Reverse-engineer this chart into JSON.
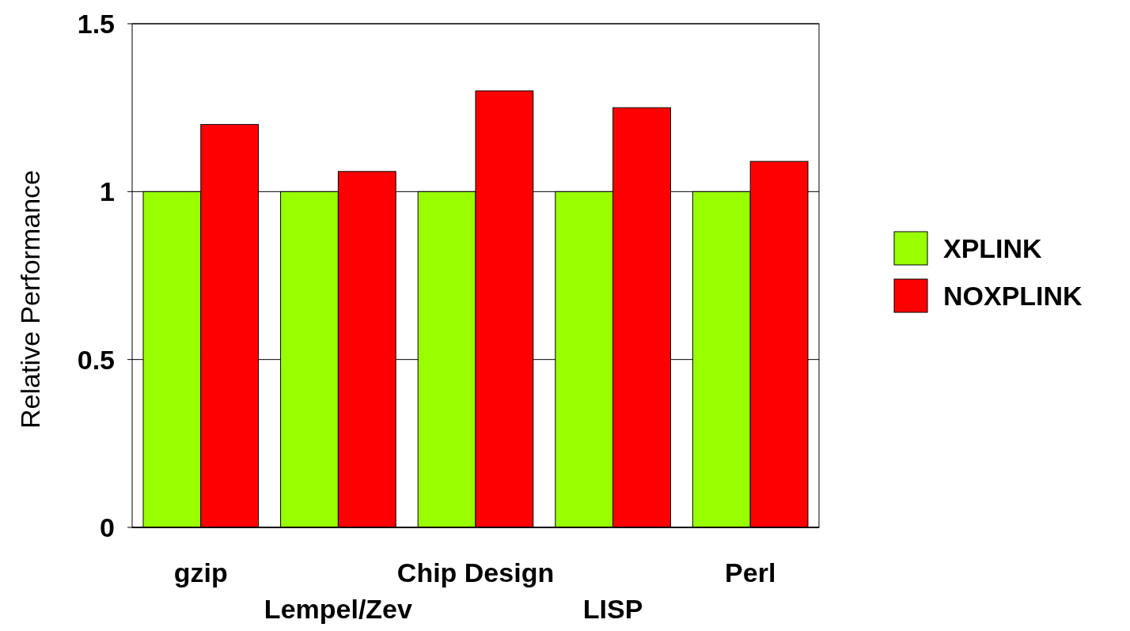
{
  "chart_data": {
    "type": "bar",
    "ylabel": "Relative Performance",
    "categories": [
      "gzip",
      "Lempel/Zev",
      "Chip Design",
      "LISP",
      "Perl"
    ],
    "series": [
      {
        "name": "XPLINK",
        "color": "#99ff00",
        "values": [
          1,
          1,
          1,
          1,
          1
        ]
      },
      {
        "name": "NOXPLINK",
        "color": "#ff0000",
        "values": [
          1.2,
          1.06,
          1.3,
          1.25,
          1.09
        ]
      }
    ],
    "ylim": [
      0,
      1.5
    ],
    "yticks": [
      0,
      0.5,
      1,
      1.5
    ],
    "grid": "y",
    "legend": "right"
  }
}
